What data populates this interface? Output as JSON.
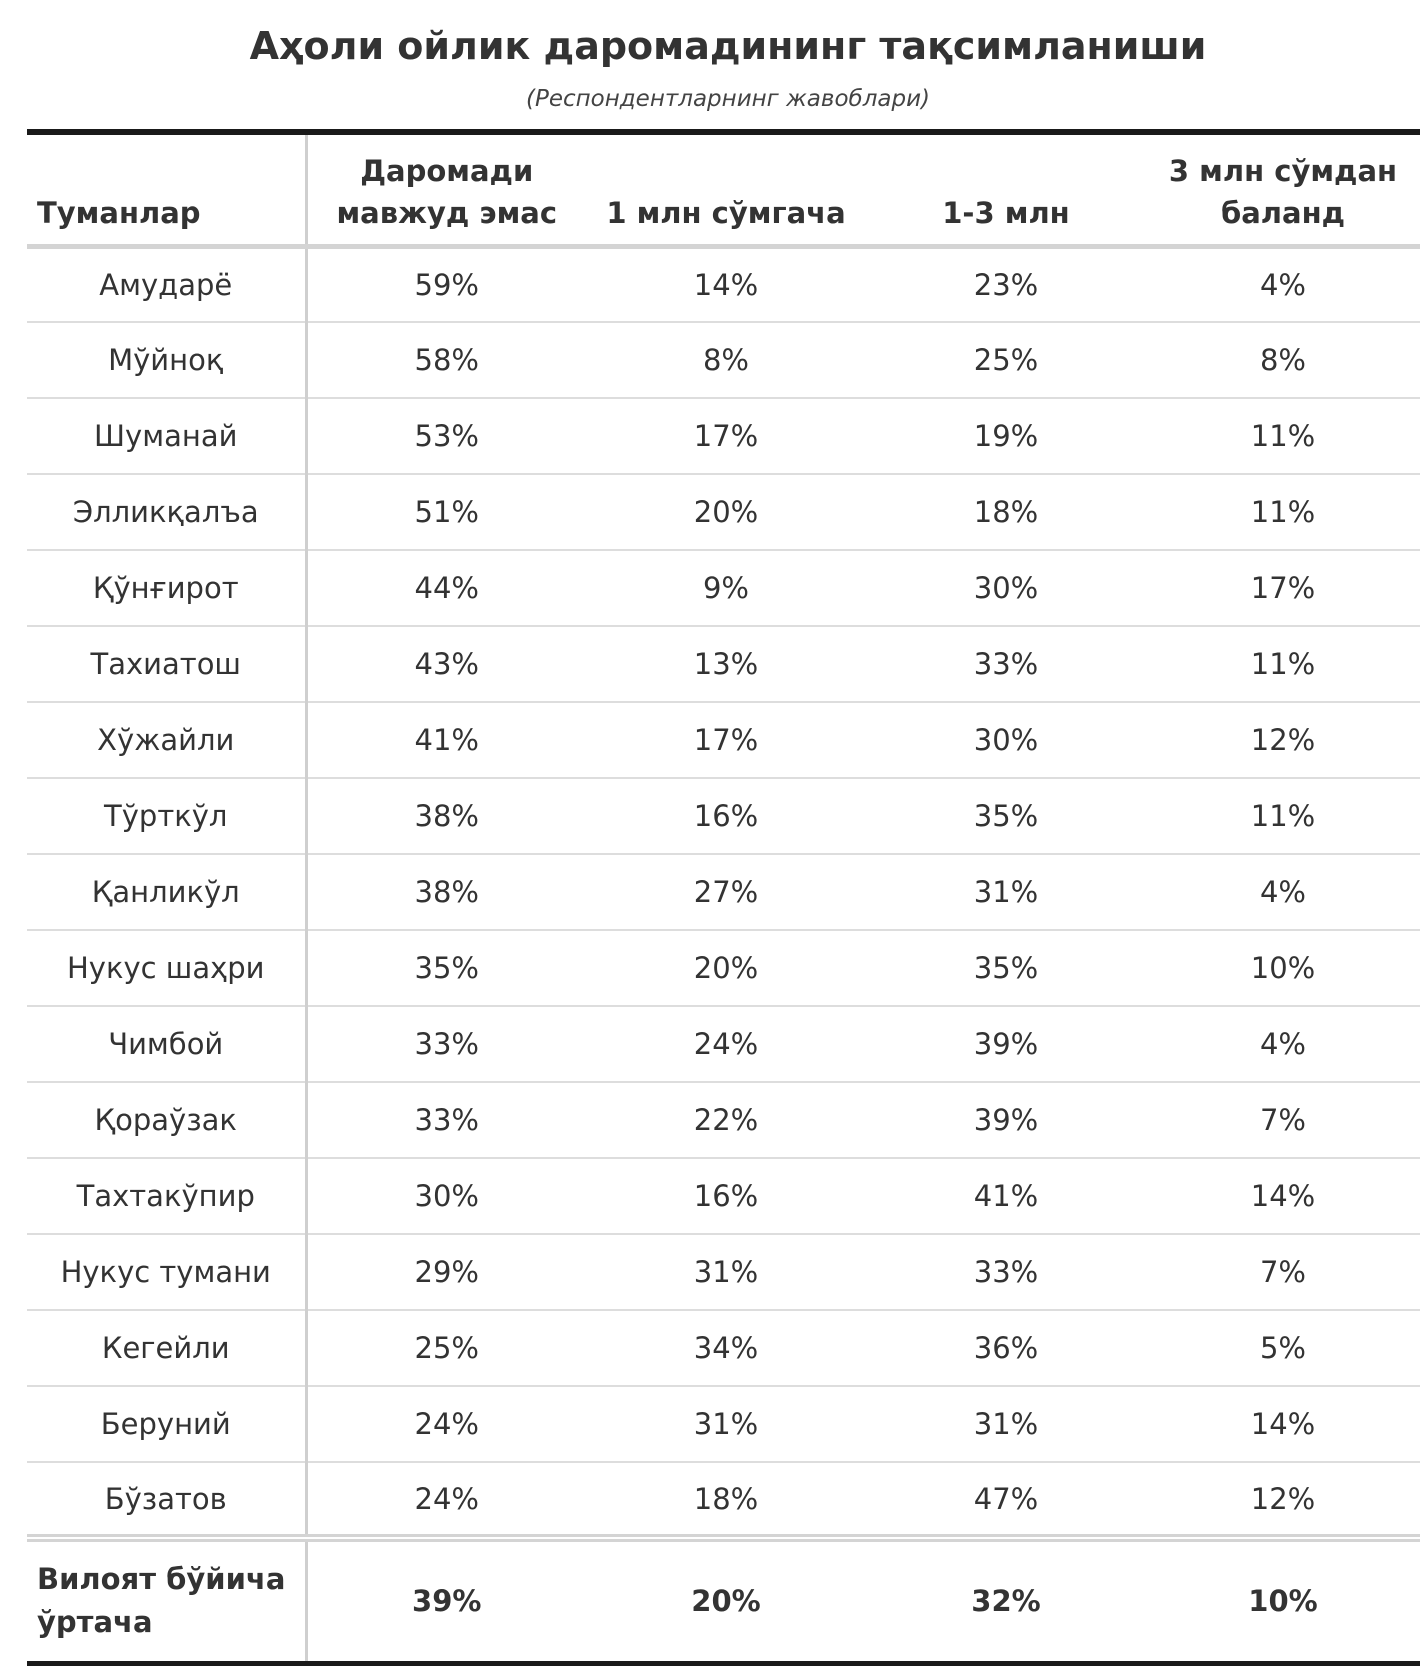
{
  "title": "Аҳоли ойлик даромадининг тақсимланиши",
  "subtitle": "(Респондентларнинг жавоблари)",
  "chart_data": {
    "type": "table",
    "columns": [
      "Туманлар",
      "Даромади мавжуд эмас",
      "1 млн сўмгача",
      "1-3 млн",
      "3 млн сўмдан баланд"
    ],
    "rows": [
      [
        "Амударё",
        "59%",
        "14%",
        "23%",
        "4%"
      ],
      [
        "Мўйноқ",
        "58%",
        "8%",
        "25%",
        "8%"
      ],
      [
        "Шуманай",
        "53%",
        "17%",
        "19%",
        "11%"
      ],
      [
        "Элликқалъа",
        "51%",
        "20%",
        "18%",
        "11%"
      ],
      [
        "Қўнғирот",
        "44%",
        "9%",
        "30%",
        "17%"
      ],
      [
        "Тахиатош",
        "43%",
        "13%",
        "33%",
        "11%"
      ],
      [
        "Хўжайли",
        "41%",
        "17%",
        "30%",
        "12%"
      ],
      [
        "Тўрткўл",
        "38%",
        "16%",
        "35%",
        "11%"
      ],
      [
        "Қанликўл",
        "38%",
        "27%",
        "31%",
        "4%"
      ],
      [
        "Нукус шаҳри",
        "35%",
        "20%",
        "35%",
        "10%"
      ],
      [
        "Чимбой",
        "33%",
        "24%",
        "39%",
        "4%"
      ],
      [
        "Қораўзак",
        "33%",
        "22%",
        "39%",
        "7%"
      ],
      [
        "Тахтакўпир",
        "30%",
        "16%",
        "41%",
        "14%"
      ],
      [
        "Нукус тумани",
        "29%",
        "31%",
        "33%",
        "7%"
      ],
      [
        "Кегейли",
        "25%",
        "34%",
        "36%",
        "5%"
      ],
      [
        "Беруний",
        "24%",
        "31%",
        "31%",
        "14%"
      ],
      [
        "Бўзатов",
        "24%",
        "18%",
        "47%",
        "12%"
      ]
    ],
    "total": [
      "Вилоят бўйича ўртача",
      "39%",
      "20%",
      "32%",
      "10%"
    ]
  }
}
